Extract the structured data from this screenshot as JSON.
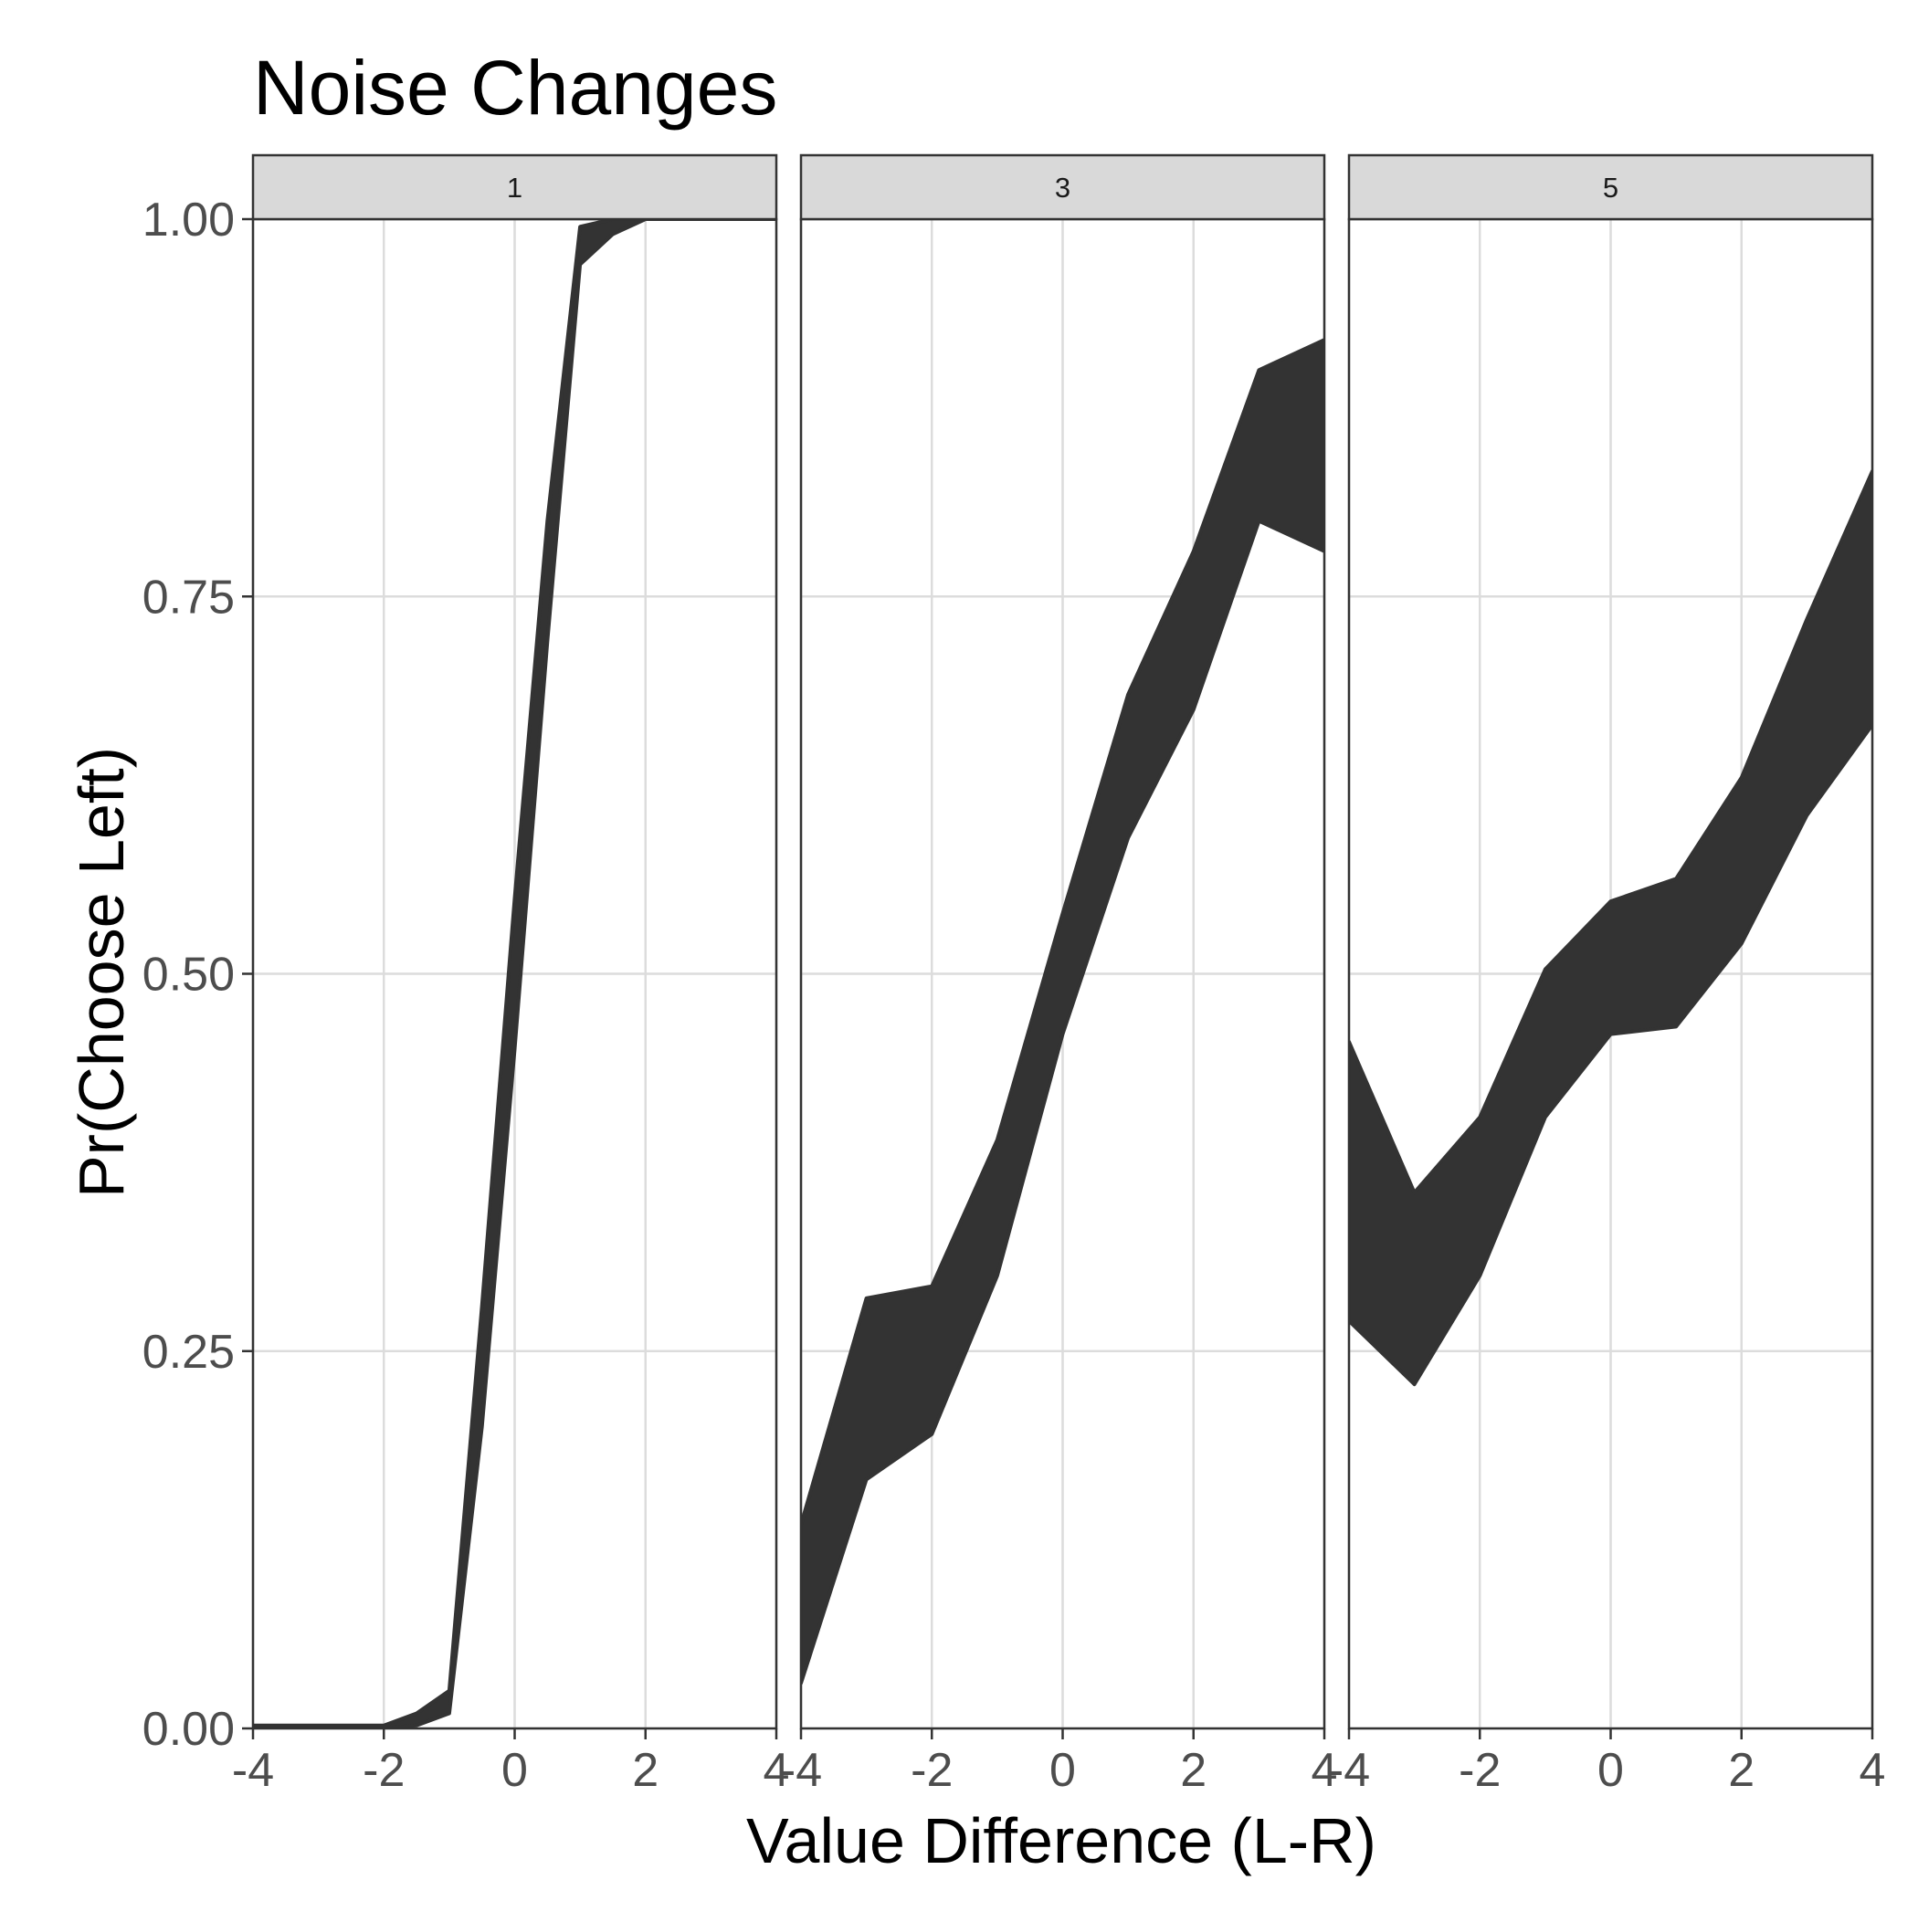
{
  "chart_data": {
    "type": "area",
    "title": "Noise Changes",
    "xlabel": "Value Difference (L-R)",
    "ylabel": "Pr(Choose Left)",
    "xlim": [
      -4,
      4
    ],
    "ylim": [
      0,
      1
    ],
    "x_ticks": [
      -4,
      -2,
      0,
      2,
      4
    ],
    "x_tick_labels": [
      "-4",
      "-2",
      "0",
      "2",
      "4"
    ],
    "y_ticks": [
      0,
      0.25,
      0.5,
      0.75,
      1
    ],
    "y_tick_labels": [
      "0.00",
      "0.25",
      "0.50",
      "0.75",
      "1.00"
    ],
    "grid": true,
    "fill_color": "#333333",
    "panels": [
      {
        "label": "1",
        "series": [
          {
            "x": [
              -4,
              -3,
              -2,
              -1.5,
              -1,
              -0.5,
              0,
              0.5,
              1,
              1.5,
              2,
              3,
              4
            ],
            "lower": [
              0.0,
              0.0,
              0.0,
              0.002,
              0.01,
              0.2,
              0.45,
              0.72,
              0.97,
              0.99,
              1.0,
              1.0,
              1.0
            ],
            "upper": [
              0.002,
              0.002,
              0.002,
              0.01,
              0.025,
              0.28,
              0.55,
              0.8,
              0.995,
              1.0,
              1.0,
              1.0,
              1.0
            ]
          }
        ]
      },
      {
        "label": "3",
        "series": [
          {
            "x": [
              -4,
              -3,
              -2,
              -1,
              0,
              1,
              2,
              3,
              4
            ],
            "lower": [
              0.03,
              0.165,
              0.195,
              0.3,
              0.46,
              0.59,
              0.675,
              0.8,
              0.78
            ],
            "upper": [
              0.135,
              0.285,
              0.293,
              0.39,
              0.54,
              0.685,
              0.78,
              0.9,
              0.92
            ]
          }
        ]
      },
      {
        "label": "5",
        "series": [
          {
            "x": [
              -4,
              -3,
              -2,
              -1,
              0,
              1,
              2,
              3,
              4
            ],
            "lower": [
              0.27,
              0.228,
              0.3,
              0.405,
              0.46,
              0.465,
              0.52,
              0.605,
              0.665
            ],
            "upper": [
              0.455,
              0.355,
              0.405,
              0.503,
              0.548,
              0.563,
              0.63,
              0.735,
              0.833
            ]
          }
        ]
      }
    ]
  }
}
